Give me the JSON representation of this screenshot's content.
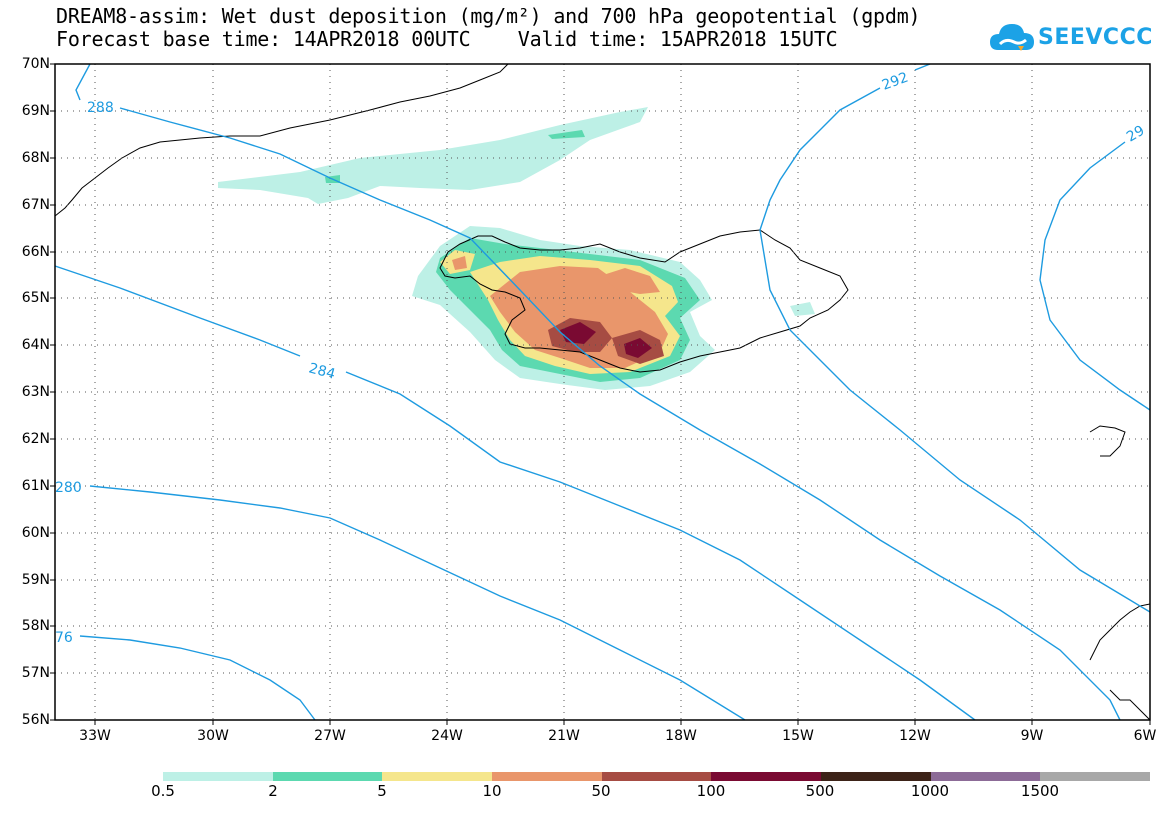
{
  "title": {
    "line1": "DREAM8-assim: Wet dust deposition (mg/m²) and 700 hPa geopotential (gpdm)",
    "line2": "Forecast base time: 14APR2018 00UTC    Valid time: 15APR2018 15UTC"
  },
  "logo": {
    "text": "SEEVCCC",
    "icon": "cloud-icon",
    "color": "#1ca2e6"
  },
  "map": {
    "lat_labels": [
      "70N",
      "69N",
      "68N",
      "67N",
      "66N",
      "65N",
      "64N",
      "63N",
      "62N",
      "61N",
      "60N",
      "59N",
      "58N",
      "57N",
      "56N"
    ],
    "lon_labels": [
      "33W",
      "30W",
      "27W",
      "24W",
      "21W",
      "18W",
      "15W",
      "12W",
      "9W",
      "6W"
    ],
    "contour_color": "#1e9be0",
    "contour_labels": [
      "288",
      "292",
      "29",
      "284",
      "280",
      "76"
    ]
  },
  "legend": {
    "colors": [
      "#bdf0e6",
      "#5cd9b0",
      "#f5e68c",
      "#e9966b",
      "#a64c43",
      "#7a0a32",
      "#3d2318",
      "#8c6b97",
      "#a8a8a8"
    ],
    "labels": [
      "0.5",
      "2",
      "5",
      "10",
      "50",
      "100",
      "500",
      "1000",
      "1500"
    ]
  }
}
